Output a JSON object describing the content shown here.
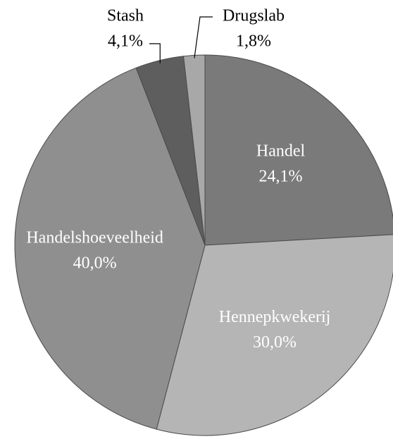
{
  "chart_data": {
    "type": "pie",
    "categories": [
      "Handel",
      "Hennepkwekerij",
      "Handelshoeveelheid",
      "Stash",
      "Drugslab"
    ],
    "values": [
      24.1,
      30.0,
      40.0,
      4.1,
      1.8
    ],
    "value_labels": [
      "24,1%",
      "30,0%",
      "40,0%",
      "4,1%",
      "1,8%"
    ],
    "colors": [
      "#7a7a7a",
      "#b5b5b5",
      "#8f8f8f",
      "#5e5e5e",
      "#a8a8a8"
    ]
  }
}
